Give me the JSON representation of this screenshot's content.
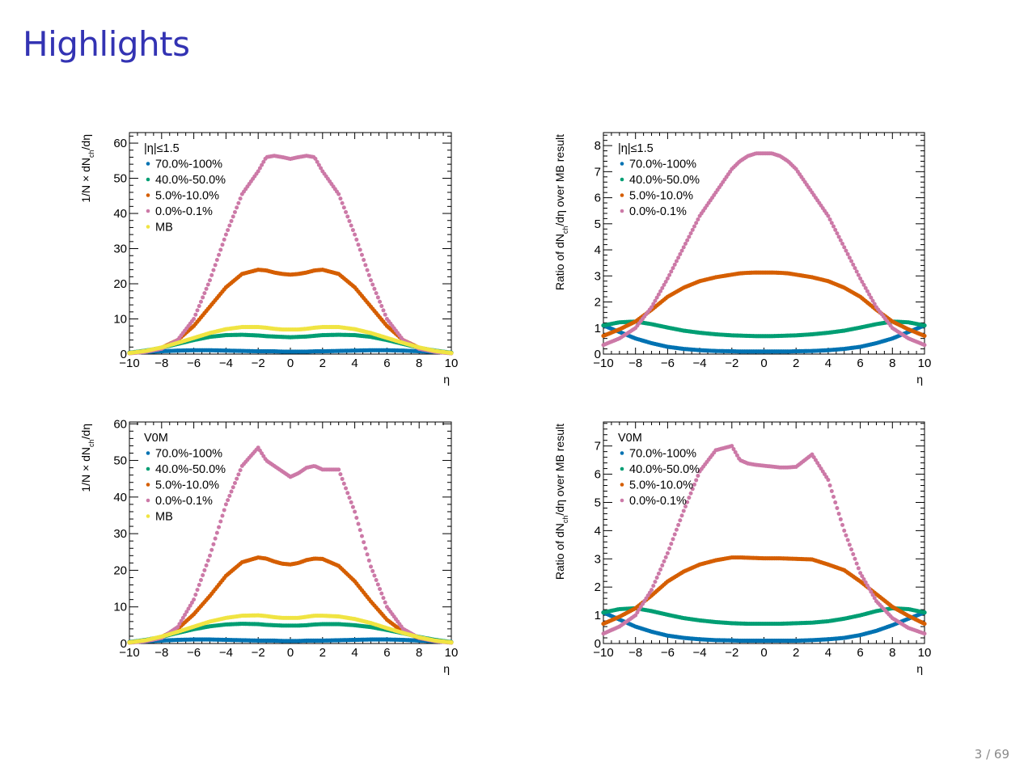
{
  "slide": {
    "title": "Highlights",
    "page": "3 / 69"
  },
  "chart_data": [
    {
      "id": "top-left",
      "type": "scatter",
      "legend_header": "|η|≤1.5",
      "ylabel": "1/N × dN_ch/dη",
      "xlabel": "η",
      "xlim": [
        -10,
        10
      ],
      "ylim": [
        0,
        63
      ],
      "xticks": [
        -10,
        -8,
        -6,
        -4,
        -2,
        0,
        2,
        4,
        6,
        8,
        10
      ],
      "yticks": [
        0,
        10,
        20,
        30,
        40,
        50,
        60
      ],
      "grid": false,
      "legend_position": "top-left",
      "x": [
        -10,
        -9,
        -8,
        -7,
        -6,
        -5,
        -4,
        -3,
        -2,
        -1.5,
        -1,
        -0.5,
        0,
        0.5,
        1,
        1.5,
        2,
        3,
        4,
        5,
        6,
        7,
        8,
        9,
        10
      ],
      "series": [
        {
          "name": "70.0%-100%",
          "color": "#0072b2",
          "values": [
            0.4,
            0.6,
            0.8,
            1.0,
            1.1,
            1.1,
            1.0,
            0.9,
            0.8,
            0.8,
            0.8,
            0.7,
            0.7,
            0.7,
            0.7,
            0.8,
            0.8,
            0.9,
            1.0,
            1.1,
            1.1,
            1.0,
            0.8,
            0.6,
            0.4
          ]
        },
        {
          "name": "40.0%-50.0%",
          "color": "#009e73",
          "values": [
            0.4,
            1.0,
            1.8,
            2.9,
            4.0,
            4.9,
            5.4,
            5.5,
            5.3,
            5.1,
            5.0,
            4.9,
            4.8,
            4.9,
            5.0,
            5.2,
            5.4,
            5.5,
            5.4,
            4.9,
            4.0,
            2.9,
            1.8,
            1.0,
            0.4
          ]
        },
        {
          "name": "5.0%-10.0%",
          "color": "#d55e00",
          "values": [
            0.3,
            0.8,
            1.8,
            4.0,
            8.0,
            13.5,
            19.0,
            22.8,
            24.0,
            23.8,
            23.2,
            22.8,
            22.6,
            22.8,
            23.2,
            23.8,
            24.0,
            22.8,
            19.0,
            13.5,
            8.0,
            4.0,
            1.8,
            0.8,
            0.3
          ]
        },
        {
          "name": "0.0%-0.1%",
          "color": "#cc79a7",
          "values": [
            0.2,
            0.6,
            1.5,
            4.0,
            10.0,
            21.0,
            34.0,
            45.5,
            52.0,
            56.0,
            56.4,
            56.0,
            55.5,
            56.0,
            56.4,
            56.0,
            52.0,
            45.5,
            34.0,
            21.0,
            10.0,
            4.0,
            1.5,
            0.6,
            0.2
          ]
        },
        {
          "name": "MB",
          "color": "#f0e442",
          "values": [
            0.3,
            0.9,
            1.9,
            3.2,
            4.6,
            6.0,
            7.1,
            7.7,
            7.7,
            7.5,
            7.2,
            7.0,
            7.0,
            7.0,
            7.2,
            7.5,
            7.7,
            7.7,
            7.1,
            6.0,
            4.6,
            3.2,
            1.9,
            0.9,
            0.3
          ]
        }
      ]
    },
    {
      "id": "top-right",
      "type": "scatter",
      "legend_header": "|η|≤1.5",
      "ylabel": "Ratio of dN_ch/dη over MB result",
      "xlabel": "η",
      "xlim": [
        -10,
        10
      ],
      "ylim": [
        0,
        8.5
      ],
      "xticks": [
        -10,
        -8,
        -6,
        -4,
        -2,
        0,
        2,
        4,
        6,
        8,
        10
      ],
      "yticks": [
        0,
        1,
        2,
        3,
        4,
        5,
        6,
        7,
        8
      ],
      "grid": false,
      "legend_position": "top-left",
      "x": [
        -10,
        -9,
        -8,
        -7,
        -6,
        -5,
        -4,
        -3,
        -2,
        -1.5,
        -1,
        -0.5,
        0,
        0.5,
        1,
        1.5,
        2,
        3,
        4,
        5,
        6,
        7,
        8,
        9,
        10
      ],
      "series": [
        {
          "name": "70.0%-100%",
          "color": "#0072b2",
          "values": [
            1.1,
            0.85,
            0.6,
            0.42,
            0.28,
            0.2,
            0.15,
            0.12,
            0.11,
            0.1,
            0.1,
            0.1,
            0.1,
            0.1,
            0.1,
            0.1,
            0.11,
            0.12,
            0.15,
            0.2,
            0.28,
            0.42,
            0.6,
            0.85,
            1.1
          ]
        },
        {
          "name": "40.0%-50.0%",
          "color": "#009e73",
          "values": [
            1.1,
            1.22,
            1.25,
            1.15,
            1.02,
            0.9,
            0.82,
            0.76,
            0.72,
            0.71,
            0.7,
            0.69,
            0.69,
            0.69,
            0.7,
            0.71,
            0.72,
            0.76,
            0.82,
            0.9,
            1.02,
            1.15,
            1.25,
            1.22,
            1.1
          ]
        },
        {
          "name": "5.0%-10.0%",
          "color": "#d55e00",
          "values": [
            0.7,
            0.95,
            1.25,
            1.7,
            2.2,
            2.55,
            2.8,
            2.95,
            3.05,
            3.1,
            3.12,
            3.13,
            3.13,
            3.13,
            3.12,
            3.1,
            3.05,
            2.95,
            2.8,
            2.55,
            2.2,
            1.7,
            1.25,
            0.95,
            0.7
          ]
        },
        {
          "name": "0.0%-0.1%",
          "color": "#cc79a7",
          "values": [
            0.35,
            0.6,
            1.0,
            1.8,
            2.9,
            4.1,
            5.3,
            6.2,
            7.1,
            7.4,
            7.6,
            7.7,
            7.7,
            7.7,
            7.6,
            7.4,
            7.1,
            6.2,
            5.3,
            4.1,
            2.9,
            1.8,
            1.0,
            0.6,
            0.35
          ]
        }
      ]
    },
    {
      "id": "bottom-left",
      "type": "scatter",
      "legend_header": "V0M",
      "ylabel": "1/N × dN_ch/dη",
      "xlabel": "η",
      "xlim": [
        -10,
        10
      ],
      "ylim": [
        0,
        60.5
      ],
      "xticks": [
        -10,
        -8,
        -6,
        -4,
        -2,
        0,
        2,
        4,
        6,
        8,
        10
      ],
      "yticks": [
        0,
        10,
        20,
        30,
        40,
        50,
        60
      ],
      "grid": false,
      "legend_position": "top-left",
      "x": [
        -10,
        -9,
        -8,
        -7,
        -6,
        -5,
        -4,
        -3,
        -2,
        -1.5,
        -1,
        -0.5,
        0,
        0.5,
        1,
        1.5,
        2,
        3,
        4,
        5,
        6,
        7,
        8,
        9,
        10
      ],
      "series": [
        {
          "name": "70.0%-100%",
          "color": "#0072b2",
          "values": [
            0.4,
            0.6,
            0.8,
            1.0,
            1.1,
            1.1,
            1.0,
            0.9,
            0.8,
            0.8,
            0.8,
            0.7,
            0.7,
            0.7,
            0.8,
            0.8,
            0.8,
            0.9,
            1.0,
            1.1,
            1.1,
            1.0,
            0.8,
            0.6,
            0.4
          ]
        },
        {
          "name": "40.0%-50.0%",
          "color": "#009e73",
          "values": [
            0.4,
            1.0,
            1.8,
            2.9,
            3.9,
            4.7,
            5.2,
            5.4,
            5.3,
            5.1,
            5.0,
            4.9,
            4.9,
            4.9,
            5.0,
            5.2,
            5.3,
            5.3,
            5.0,
            4.5,
            3.7,
            2.8,
            1.8,
            1.0,
            0.4
          ]
        },
        {
          "name": "5.0%-10.0%",
          "color": "#d55e00",
          "values": [
            0.3,
            0.8,
            1.8,
            4.0,
            8.0,
            13.0,
            18.5,
            22.2,
            23.5,
            23.2,
            22.4,
            21.8,
            21.6,
            22.0,
            22.8,
            23.2,
            23.1,
            21.2,
            17.0,
            11.5,
            6.5,
            3.2,
            1.5,
            0.7,
            0.3
          ]
        },
        {
          "name": "0.0%-0.1%",
          "color": "#cc79a7",
          "values": [
            0.2,
            0.6,
            1.5,
            4.5,
            12.0,
            24.0,
            38.0,
            48.5,
            53.5,
            50.0,
            48.5,
            47.0,
            45.5,
            46.5,
            48.0,
            48.5,
            47.5,
            47.5,
            36.0,
            21.0,
            10.0,
            4.0,
            1.5,
            0.6,
            0.2
          ]
        },
        {
          "name": "MB",
          "color": "#f0e442",
          "values": [
            0.3,
            0.9,
            1.9,
            3.2,
            4.6,
            6.0,
            7.0,
            7.6,
            7.7,
            7.5,
            7.2,
            7.0,
            7.0,
            7.0,
            7.3,
            7.6,
            7.6,
            7.4,
            6.7,
            5.6,
            4.2,
            2.9,
            1.7,
            0.8,
            0.3
          ]
        }
      ]
    },
    {
      "id": "bottom-right",
      "type": "scatter",
      "legend_header": "V0M",
      "ylabel": "Ratio of dN_ch/dη over MB result",
      "xlabel": "η",
      "xlim": [
        -10,
        10
      ],
      "ylim": [
        0,
        7.85
      ],
      "xticks": [
        -10,
        -8,
        -6,
        -4,
        -2,
        0,
        2,
        4,
        6,
        8,
        10
      ],
      "yticks": [
        0,
        1,
        2,
        3,
        4,
        5,
        6,
        7
      ],
      "grid": false,
      "legend_position": "top-left",
      "x": [
        -10,
        -9,
        -8,
        -7,
        -6,
        -5,
        -4,
        -3,
        -2,
        -1.5,
        -1,
        -0.5,
        0,
        0.5,
        1,
        1.5,
        2,
        3,
        4,
        5,
        6,
        7,
        8,
        9,
        10
      ],
      "series": [
        {
          "name": "70.0%-100%",
          "color": "#0072b2",
          "values": [
            1.1,
            0.85,
            0.6,
            0.42,
            0.28,
            0.2,
            0.15,
            0.12,
            0.11,
            0.1,
            0.1,
            0.1,
            0.1,
            0.1,
            0.1,
            0.1,
            0.1,
            0.12,
            0.15,
            0.2,
            0.3,
            0.45,
            0.65,
            0.88,
            1.1
          ]
        },
        {
          "name": "40.0%-50.0%",
          "color": "#009e73",
          "values": [
            1.1,
            1.22,
            1.25,
            1.15,
            1.02,
            0.9,
            0.82,
            0.76,
            0.72,
            0.71,
            0.7,
            0.7,
            0.7,
            0.7,
            0.7,
            0.71,
            0.72,
            0.74,
            0.79,
            0.88,
            1.0,
            1.15,
            1.25,
            1.22,
            1.1
          ]
        },
        {
          "name": "5.0%-10.0%",
          "color": "#d55e00",
          "values": [
            0.7,
            0.95,
            1.25,
            1.7,
            2.2,
            2.55,
            2.8,
            2.95,
            3.05,
            3.05,
            3.04,
            3.03,
            3.02,
            3.02,
            3.02,
            3.01,
            3.0,
            2.98,
            2.8,
            2.6,
            2.2,
            1.75,
            1.3,
            0.98,
            0.7
          ]
        },
        {
          "name": "0.0%-0.1%",
          "color": "#cc79a7",
          "values": [
            0.35,
            0.6,
            1.0,
            1.9,
            3.2,
            4.7,
            6.1,
            6.85,
            7.0,
            6.5,
            6.38,
            6.33,
            6.3,
            6.27,
            6.24,
            6.24,
            6.26,
            6.7,
            5.8,
            4.0,
            2.5,
            1.5,
            0.9,
            0.55,
            0.35
          ]
        }
      ]
    }
  ]
}
